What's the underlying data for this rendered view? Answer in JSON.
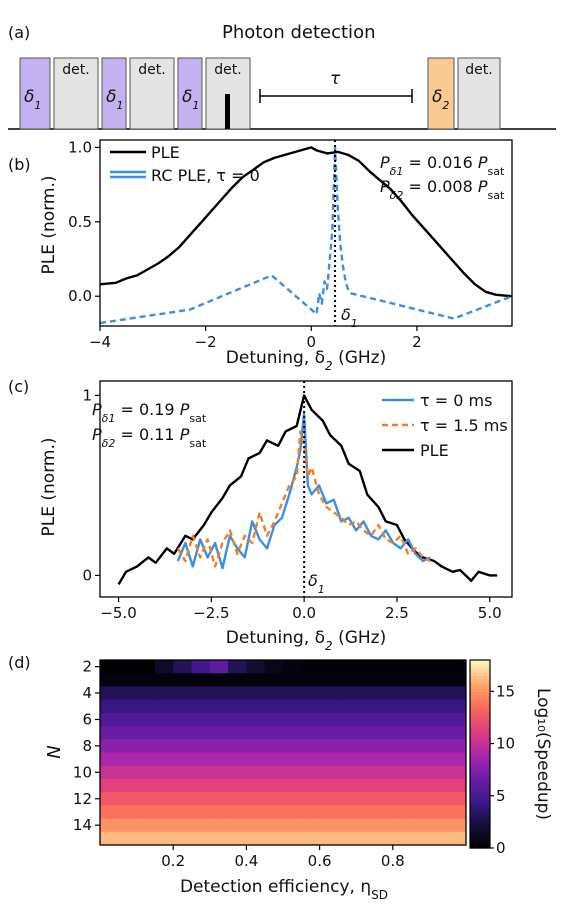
{
  "panel_a": {
    "label": "(a)",
    "title": "Photon detection",
    "pulse_labels": {
      "delta1": "δ",
      "delta1_sub": "1",
      "delta2": "δ",
      "delta2_sub": "2"
    },
    "det_label": "det.",
    "tau_label": "τ",
    "colors": {
      "delta1": "#c3b2ef",
      "delta2": "#f9c993",
      "det": "#e4e4e4",
      "marker": "#000000"
    }
  },
  "chart_data": [
    {
      "panel": "(b)",
      "type": "line",
      "xlabel": "Detuning, δ",
      "xlabel_sub": "2",
      "xlabel_unit": " (GHz)",
      "ylabel": "PLE (norm.)",
      "xlim": [
        -4,
        3.8
      ],
      "ylim": [
        -0.2,
        1.05
      ],
      "xticks": [
        -4,
        -2,
        0,
        2
      ],
      "xtick_labels": [
        "−4",
        "−2",
        "0",
        "2"
      ],
      "yticks": [
        0,
        0.5,
        1.0
      ],
      "ytick_labels": [
        "0.0",
        "0.5",
        "1.0"
      ],
      "legend": [
        {
          "label": "PLE",
          "color": "#000000",
          "style": "solid"
        },
        {
          "label": "RC PLE, τ = 0",
          "color": "#3a8fe0",
          "style": "double"
        }
      ],
      "annotations": {
        "p1_sym": "P",
        "p1_sub": "δ1",
        "p1_val": " = 0.016 ",
        "p1_unit": "P",
        "p1_unit_sub": "sat",
        "p2_sym": "P",
        "p2_sub": "δ2",
        "p2_val": " = 0.008 ",
        "p2_unit": "P",
        "p2_unit_sub": "sat",
        "marker": "δ",
        "marker_sub": "1",
        "marker_x": 0.45
      },
      "series": [
        {
          "name": "PLE",
          "color": "#000000",
          "dash": "",
          "x": [
            -4,
            -3.7,
            -3.5,
            -3.3,
            -3.1,
            -2.9,
            -2.7,
            -2.5,
            -2.3,
            -2.1,
            -1.9,
            -1.7,
            -1.5,
            -1.3,
            -1.1,
            -0.9,
            -0.7,
            -0.5,
            -0.3,
            -0.1,
            0.0,
            0.1,
            0.3,
            0.5,
            0.7,
            0.9,
            1.1,
            1.3,
            1.5,
            1.7,
            1.9,
            2.1,
            2.3,
            2.5,
            2.7,
            2.9,
            3.1,
            3.3,
            3.5,
            3.8
          ],
          "y": [
            0.08,
            0.09,
            0.12,
            0.14,
            0.18,
            0.22,
            0.27,
            0.33,
            0.41,
            0.49,
            0.57,
            0.65,
            0.73,
            0.8,
            0.85,
            0.9,
            0.93,
            0.95,
            0.97,
            0.99,
            1.0,
            0.98,
            0.96,
            0.97,
            0.95,
            0.91,
            0.84,
            0.78,
            0.72,
            0.64,
            0.55,
            0.47,
            0.39,
            0.31,
            0.23,
            0.15,
            0.08,
            0.03,
            0.01,
            0.0
          ]
        },
        {
          "name": "RC PLE, τ = 0",
          "color": "#3a8fe0",
          "dash": "6,4",
          "x": [
            -4,
            -2.3,
            -0.75,
            0.1,
            0.15,
            0.2,
            0.25,
            0.3,
            0.35,
            0.4,
            0.45,
            0.5,
            0.55,
            0.6,
            0.65,
            0.7,
            0.75,
            2.7,
            3.8
          ],
          "y": [
            -0.18,
            -0.09,
            0.14,
            -0.12,
            0.02,
            -0.05,
            0.1,
            0.05,
            0.25,
            0.45,
            1.0,
            0.6,
            0.35,
            0.2,
            0.1,
            0.04,
            0.02,
            -0.15,
            0.0
          ]
        }
      ]
    },
    {
      "panel": "(c)",
      "type": "line",
      "xlabel": "Detuning, δ",
      "xlabel_sub": "2",
      "xlabel_unit": " (GHz)",
      "ylabel": "PLE (norm.)",
      "xlim": [
        -5.5,
        5.6
      ],
      "ylim": [
        -0.12,
        1.08
      ],
      "xticks": [
        -5,
        -2.5,
        0,
        2.5,
        5
      ],
      "xtick_labels": [
        "−5.0",
        "−2.5",
        "0.0",
        "2.5",
        "5.0"
      ],
      "yticks": [
        0,
        1
      ],
      "ytick_labels": [
        "0",
        "1"
      ],
      "legend": [
        {
          "label": "τ = 0 ms",
          "color": "#3a8fe0",
          "style": "solid"
        },
        {
          "label": "τ = 1.5 ms",
          "color": "#f07d2a",
          "style": "dashed"
        },
        {
          "label": "PLE",
          "color": "#000000",
          "style": "solid"
        }
      ],
      "annotations": {
        "p1_sym": "P",
        "p1_sub": "δ1",
        "p1_val": " = 0.19 ",
        "p1_unit": "P",
        "p1_unit_sub": "sat",
        "p2_sym": "P",
        "p2_sub": "δ2",
        "p2_val": " = 0.11 ",
        "p2_unit": "P",
        "p2_unit_sub": "sat",
        "marker": "δ",
        "marker_sub": "1",
        "marker_x": 0
      },
      "series": [
        {
          "name": "PLE",
          "color": "#000000",
          "dash": "",
          "x": [
            -5,
            -4.8,
            -4.5,
            -4.2,
            -4.0,
            -3.7,
            -3.5,
            -3.2,
            -3.0,
            -2.7,
            -2.5,
            -2.2,
            -2.0,
            -1.7,
            -1.5,
            -1.2,
            -1.0,
            -0.7,
            -0.5,
            -0.2,
            0.0,
            0.2,
            0.5,
            0.7,
            1.0,
            1.2,
            1.5,
            1.7,
            2.0,
            2.2,
            2.5,
            2.7,
            3.0,
            3.2,
            3.5,
            3.7,
            4.0,
            4.2,
            4.5,
            4.7,
            5.0,
            5.2
          ],
          "y": [
            -0.05,
            0.02,
            0.05,
            0.1,
            0.07,
            0.15,
            0.12,
            0.22,
            0.2,
            0.28,
            0.35,
            0.43,
            0.5,
            0.55,
            0.65,
            0.68,
            0.75,
            0.72,
            0.8,
            0.83,
            1.0,
            0.92,
            0.86,
            0.78,
            0.72,
            0.62,
            0.58,
            0.45,
            0.38,
            0.3,
            0.28,
            0.2,
            0.13,
            0.1,
            0.08,
            0.05,
            0.02,
            0.03,
            -0.03,
            0.02,
            0.0,
            0.0
          ]
        },
        {
          "name": "τ = 0 ms",
          "color": "#3a8fe0",
          "dash": "",
          "x": [
            -3.4,
            -3.2,
            -3.0,
            -2.8,
            -2.6,
            -2.4,
            -2.2,
            -2.0,
            -1.8,
            -1.6,
            -1.4,
            -1.2,
            -1.0,
            -0.8,
            -0.6,
            -0.4,
            -0.2,
            -0.1,
            0.0,
            0.1,
            0.2,
            0.4,
            0.6,
            0.8,
            1.0,
            1.2,
            1.4,
            1.6,
            1.8,
            2.0,
            2.2,
            2.4,
            2.6,
            2.8,
            3.0,
            3.2,
            3.4
          ],
          "y": [
            0.08,
            0.18,
            0.05,
            0.2,
            0.1,
            0.18,
            0.04,
            0.22,
            0.15,
            0.1,
            0.3,
            0.2,
            0.15,
            0.28,
            0.32,
            0.45,
            0.6,
            0.7,
            0.9,
            0.5,
            0.45,
            0.5,
            0.4,
            0.42,
            0.3,
            0.32,
            0.25,
            0.3,
            0.22,
            0.2,
            0.25,
            0.18,
            0.15,
            0.2,
            0.12,
            0.08,
            0.1
          ]
        },
        {
          "name": "τ = 1.5 ms",
          "color": "#f07d2a",
          "dash": "6,4",
          "x": [
            -3.4,
            -3.2,
            -3.0,
            -2.8,
            -2.6,
            -2.4,
            -2.2,
            -2.0,
            -1.8,
            -1.6,
            -1.4,
            -1.2,
            -1.0,
            -0.8,
            -0.6,
            -0.4,
            -0.2,
            -0.1,
            0.0,
            0.1,
            0.2,
            0.4,
            0.6,
            0.8,
            1.0,
            1.2,
            1.4,
            1.6,
            1.8,
            2.0,
            2.2,
            2.4,
            2.6,
            2.8,
            3.0,
            3.2,
            3.4
          ],
          "y": [
            0.15,
            0.08,
            0.22,
            0.1,
            0.2,
            0.05,
            0.18,
            0.25,
            0.12,
            0.22,
            0.18,
            0.35,
            0.22,
            0.3,
            0.4,
            0.5,
            0.55,
            0.8,
            0.72,
            0.55,
            0.6,
            0.45,
            0.38,
            0.35,
            0.32,
            0.28,
            0.3,
            0.25,
            0.22,
            0.28,
            0.2,
            0.18,
            0.22,
            0.12,
            0.15,
            0.1,
            0.08
          ]
        }
      ]
    },
    {
      "panel": "(d)",
      "type": "heatmap",
      "xlabel": "Detection efficiency, η",
      "xlabel_sub": "SD",
      "ylabel": "N",
      "colorbar_label": "Log₁₀(Speedup)",
      "xlim": [
        0,
        1
      ],
      "x_cells": 20,
      "xticks": [
        0.2,
        0.4,
        0.6,
        0.8
      ],
      "xtick_labels": [
        "0.2",
        "0.4",
        "0.6",
        "0.8"
      ],
      "rows": [
        2,
        3,
        4,
        5,
        6,
        7,
        8,
        9,
        10,
        11,
        12,
        13,
        14,
        15
      ],
      "yticks": [
        2,
        4,
        6,
        8,
        10,
        12,
        14
      ],
      "ytick_labels": [
        "2",
        "4",
        "6",
        "8",
        "10",
        "12",
        "14"
      ],
      "row_values": [
        0.3,
        0.4,
        3.0,
        4.2,
        5.4,
        6.6,
        7.8,
        9.0,
        10.2,
        11.4,
        12.6,
        13.8,
        15.0,
        16.2
      ],
      "row2_values": [
        0.0,
        0.0,
        0.0,
        1.5,
        3.0,
        4.5,
        6.0,
        3.0,
        2.0,
        1.0,
        0.5,
        0.3,
        0.3,
        0.3,
        0.3,
        0.3,
        0.3,
        0.3,
        0.3,
        0.3
      ],
      "colorbar_range": [
        0,
        18
      ],
      "colorbar_ticks": [
        0,
        5,
        10,
        15
      ],
      "colorbar_tick_labels": [
        "0",
        "5",
        "10",
        "15"
      ]
    }
  ]
}
